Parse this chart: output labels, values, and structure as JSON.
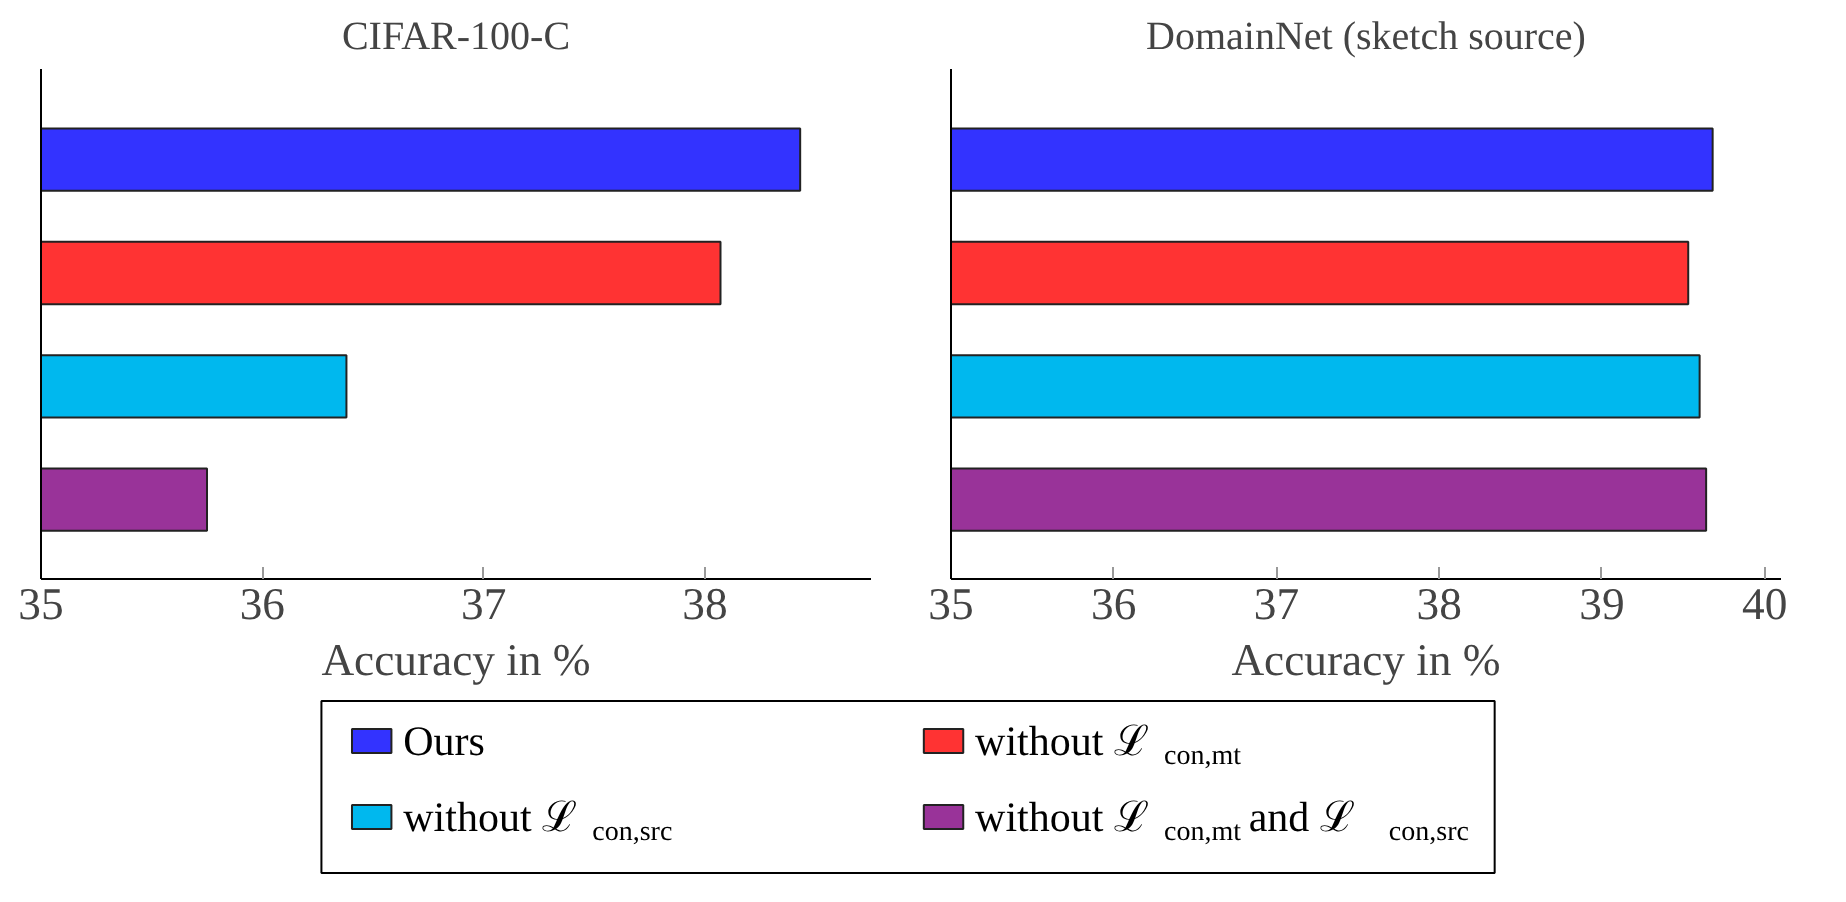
{
  "chart_data": [
    {
      "type": "bar",
      "orientation": "horizontal",
      "title": "CIFAR-100-C",
      "xlabel": "Accuracy in %",
      "categories": [
        null,
        null,
        null,
        null
      ],
      "xlim": [
        35,
        38.75
      ],
      "xticks": [
        35,
        36,
        37,
        38
      ],
      "tick_labels": "x",
      "grid": false,
      "legend": "bottom",
      "series": [
        {
          "name": "Ours",
          "color": "#3333ff",
          "values": [
            38.43,
            null,
            null,
            null
          ]
        },
        {
          "name": "without ℒ$_{con,mt}$",
          "color": "#ff3333",
          "values": [
            null,
            38.07,
            null,
            null
          ]
        },
        {
          "name": "without ℒ$_{con,src}$",
          "color": "#00b8ee",
          "values": [
            null,
            null,
            36.38,
            null
          ]
        },
        {
          "name": "without ℒ$_{con,mt}$ and ℒ$_{con,src}$",
          "color": "#993399",
          "values": [
            null,
            null,
            null,
            35.75
          ]
        }
      ]
    },
    {
      "type": "bar",
      "orientation": "horizontal",
      "title": "DomainNet (sketch source)",
      "xlabel": "Accuracy in %",
      "categories": [
        null,
        null,
        null,
        null
      ],
      "xlim": [
        35,
        40.1
      ],
      "xticks": [
        35,
        36,
        37,
        38,
        39,
        40
      ],
      "tick_labels": "x",
      "grid": false,
      "series": [
        {
          "color": "#3333ff",
          "values": [
            39.68,
            null,
            null,
            null
          ]
        },
        {
          "color": "#ff3333",
          "values": [
            null,
            39.53,
            null,
            null
          ]
        },
        {
          "color": "#00b8ee",
          "values": [
            null,
            null,
            39.6,
            null
          ]
        },
        {
          "color": "#993399",
          "values": [
            null,
            null,
            null,
            39.64
          ]
        }
      ]
    }
  ]
}
